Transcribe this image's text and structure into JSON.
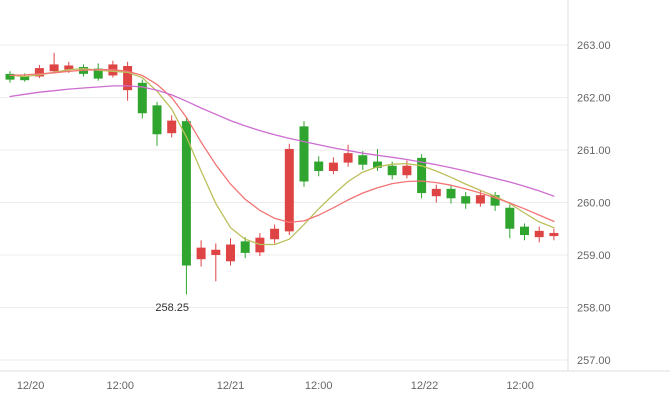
{
  "chart_data": {
    "type": "candlestick",
    "title": "",
    "legend_position": "none",
    "grid": true,
    "color_convention": "red = up candle, green = down candle",
    "y_axis": {
      "position": "right",
      "min": 257,
      "max": 263,
      "ticks": [
        "263.00",
        "262.00",
        "261.00",
        "260.00",
        "259.00",
        "258.00",
        "257.00"
      ]
    },
    "x_axis": {
      "labels": [
        {
          "text": "12/20",
          "pos": 1.4
        },
        {
          "text": "12:00",
          "pos": 7.5
        },
        {
          "text": "12/21",
          "pos": 15
        },
        {
          "text": "12:00",
          "pos": 21
        },
        {
          "text": "12/22",
          "pos": 28.2
        },
        {
          "text": "12:00",
          "pos": 34.7
        }
      ]
    },
    "candles": [
      {
        "o": 262.45,
        "h": 262.5,
        "l": 262.28,
        "c": 262.34
      },
      {
        "o": 262.4,
        "h": 262.46,
        "l": 262.3,
        "c": 262.33
      },
      {
        "o": 262.4,
        "h": 262.62,
        "l": 262.37,
        "c": 262.56
      },
      {
        "o": 262.5,
        "h": 262.85,
        "l": 262.46,
        "c": 262.63
      },
      {
        "o": 262.53,
        "h": 262.68,
        "l": 262.47,
        "c": 262.61
      },
      {
        "o": 262.58,
        "h": 262.63,
        "l": 262.4,
        "c": 262.45
      },
      {
        "o": 262.55,
        "h": 262.65,
        "l": 262.32,
        "c": 262.36
      },
      {
        "o": 262.42,
        "h": 262.7,
        "l": 262.38,
        "c": 262.63
      },
      {
        "o": 262.14,
        "h": 262.68,
        "l": 261.94,
        "c": 262.6
      },
      {
        "o": 262.28,
        "h": 262.34,
        "l": 261.6,
        "c": 261.7
      },
      {
        "o": 261.85,
        "h": 261.92,
        "l": 261.08,
        "c": 261.3
      },
      {
        "o": 261.32,
        "h": 261.66,
        "l": 261.24,
        "c": 261.56
      },
      {
        "o": 261.55,
        "h": 261.62,
        "l": 258.25,
        "c": 258.8
      },
      {
        "o": 258.92,
        "h": 259.28,
        "l": 258.78,
        "c": 259.14
      },
      {
        "o": 259.0,
        "h": 259.22,
        "l": 258.5,
        "c": 259.1
      },
      {
        "o": 258.88,
        "h": 259.32,
        "l": 258.8,
        "c": 259.2
      },
      {
        "o": 259.26,
        "h": 259.34,
        "l": 258.94,
        "c": 259.04
      },
      {
        "o": 259.05,
        "h": 259.42,
        "l": 258.98,
        "c": 259.33
      },
      {
        "o": 259.3,
        "h": 259.58,
        "l": 259.22,
        "c": 259.5
      },
      {
        "o": 259.45,
        "h": 261.12,
        "l": 259.38,
        "c": 261.02
      },
      {
        "o": 261.45,
        "h": 261.55,
        "l": 260.3,
        "c": 260.4
      },
      {
        "o": 260.78,
        "h": 260.88,
        "l": 260.5,
        "c": 260.6
      },
      {
        "o": 260.6,
        "h": 260.86,
        "l": 260.54,
        "c": 260.76
      },
      {
        "o": 260.76,
        "h": 261.1,
        "l": 260.68,
        "c": 260.94
      },
      {
        "o": 260.9,
        "h": 260.98,
        "l": 260.62,
        "c": 260.72
      },
      {
        "o": 260.78,
        "h": 261.02,
        "l": 260.6,
        "c": 260.66
      },
      {
        "o": 260.7,
        "h": 260.78,
        "l": 260.44,
        "c": 260.52
      },
      {
        "o": 260.52,
        "h": 260.8,
        "l": 260.46,
        "c": 260.7
      },
      {
        "o": 260.85,
        "h": 260.92,
        "l": 260.08,
        "c": 260.18
      },
      {
        "o": 260.12,
        "h": 260.34,
        "l": 260.0,
        "c": 260.26
      },
      {
        "o": 260.26,
        "h": 260.32,
        "l": 259.98,
        "c": 260.08
      },
      {
        "o": 260.12,
        "h": 260.2,
        "l": 259.88,
        "c": 259.98
      },
      {
        "o": 259.98,
        "h": 260.24,
        "l": 259.92,
        "c": 260.14
      },
      {
        "o": 260.14,
        "h": 260.2,
        "l": 259.84,
        "c": 259.94
      },
      {
        "o": 259.9,
        "h": 259.96,
        "l": 259.32,
        "c": 259.5
      },
      {
        "o": 259.54,
        "h": 259.6,
        "l": 259.28,
        "c": 259.38
      },
      {
        "o": 259.34,
        "h": 259.54,
        "l": 259.24,
        "c": 259.46
      },
      {
        "o": 259.36,
        "h": 259.5,
        "l": 259.28,
        "c": 259.42
      }
    ],
    "overlays": [
      {
        "name": "ma-fast",
        "color": "#bcbf5a",
        "values": [
          262.42,
          262.4,
          262.43,
          262.48,
          262.53,
          262.55,
          262.52,
          262.5,
          262.48,
          262.38,
          262.12,
          261.78,
          261.25,
          260.6,
          259.98,
          259.52,
          259.3,
          259.2,
          259.2,
          259.3,
          259.58,
          259.88,
          260.15,
          260.4,
          260.58,
          260.68,
          260.73,
          260.74,
          260.7,
          260.6,
          260.48,
          260.35,
          260.23,
          260.12,
          259.98,
          259.8,
          259.63,
          259.52
        ]
      },
      {
        "name": "ma-medium",
        "color": "#f27474",
        "values": [
          262.42,
          262.43,
          262.45,
          262.47,
          262.5,
          262.52,
          262.53,
          262.53,
          262.5,
          262.42,
          262.25,
          262.0,
          261.62,
          261.15,
          260.72,
          260.35,
          260.06,
          259.85,
          259.7,
          259.62,
          259.65,
          259.76,
          259.9,
          260.05,
          260.18,
          260.28,
          260.36,
          260.4,
          260.41,
          260.38,
          260.33,
          260.26,
          260.18,
          260.09,
          259.99,
          259.88,
          259.76,
          259.64
        ]
      },
      {
        "name": "ma-slow",
        "color": "#cd6dd0",
        "values": [
          262.02,
          262.06,
          262.1,
          262.13,
          262.16,
          262.18,
          262.2,
          262.22,
          262.22,
          262.2,
          262.14,
          262.05,
          261.93,
          261.8,
          261.68,
          261.56,
          261.46,
          261.37,
          261.29,
          261.22,
          261.16,
          261.1,
          261.04,
          260.99,
          260.94,
          260.9,
          260.86,
          260.82,
          260.77,
          260.72,
          260.66,
          260.6,
          260.53,
          260.46,
          260.39,
          260.31,
          260.22,
          260.12
        ]
      }
    ],
    "annotations": [
      {
        "text": "258.25",
        "price": 258.25,
        "candle_index": 12
      }
    ],
    "colors": {
      "up": "#df4444",
      "down": "#2fa52f",
      "grid": "#ededed",
      "axis_line": "#dcdcdc",
      "tick_text": "#666666",
      "annotation_text": "#333333",
      "background": "#ffffff"
    }
  }
}
